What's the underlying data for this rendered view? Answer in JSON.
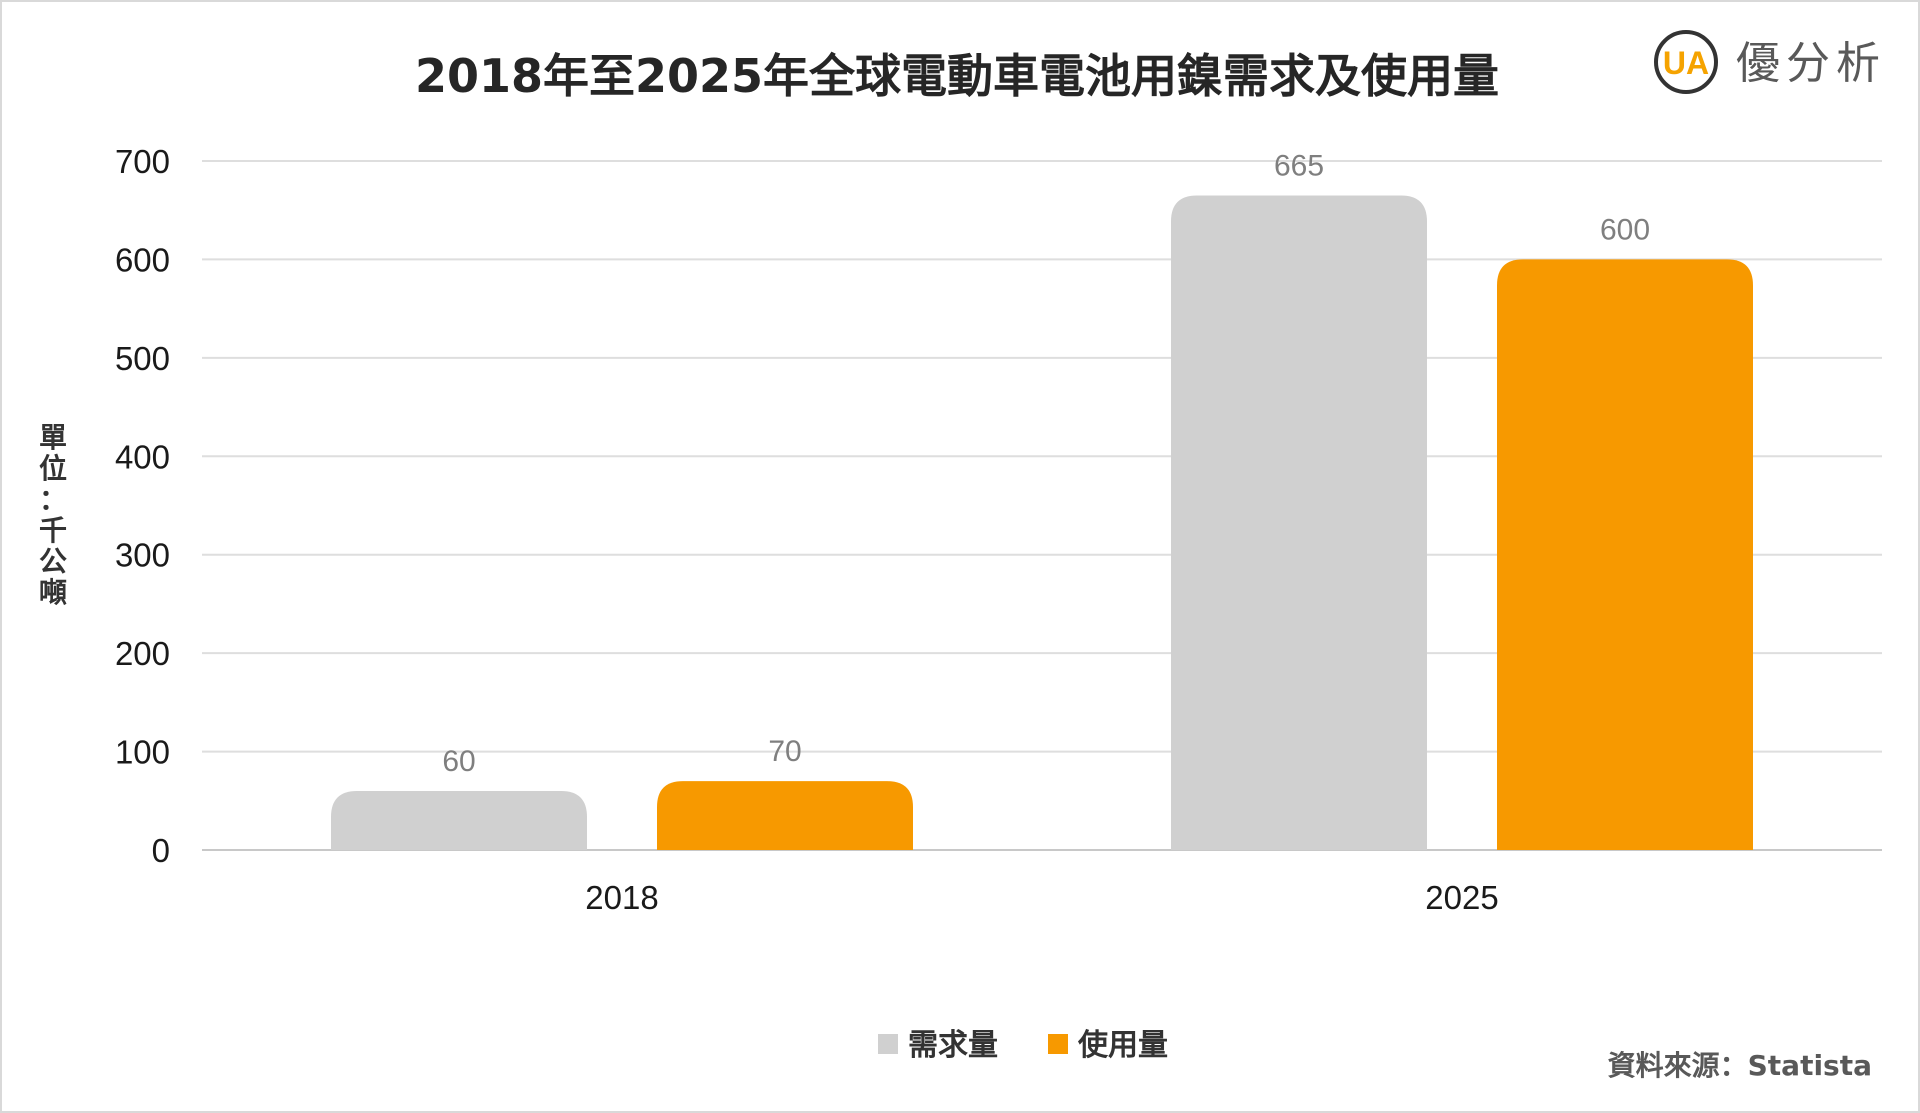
{
  "brand": {
    "name": "優分析",
    "mark_text": "UA",
    "colors": {
      "ring": "#333333",
      "accent": "#f5a300"
    }
  },
  "source": "資料來源：Statista",
  "chart_data": {
    "type": "bar",
    "title": "2018年至2025年全球電動車電池用鎳需求及使用量",
    "ylabel": "單位：千公噸",
    "xlabel": "",
    "categories": [
      "2018",
      "2025"
    ],
    "series": [
      {
        "name": "需求量",
        "values": [
          60,
          665
        ],
        "color": "#d0d0d0"
      },
      {
        "name": "使用量",
        "values": [
          70,
          600
        ],
        "color": "#f79900"
      }
    ],
    "ylim": [
      0,
      700
    ],
    "yticks": [
      0,
      100,
      200,
      300,
      400,
      500,
      600,
      700
    ],
    "data_labels": true,
    "grid": true,
    "legend": "bottom-center"
  }
}
